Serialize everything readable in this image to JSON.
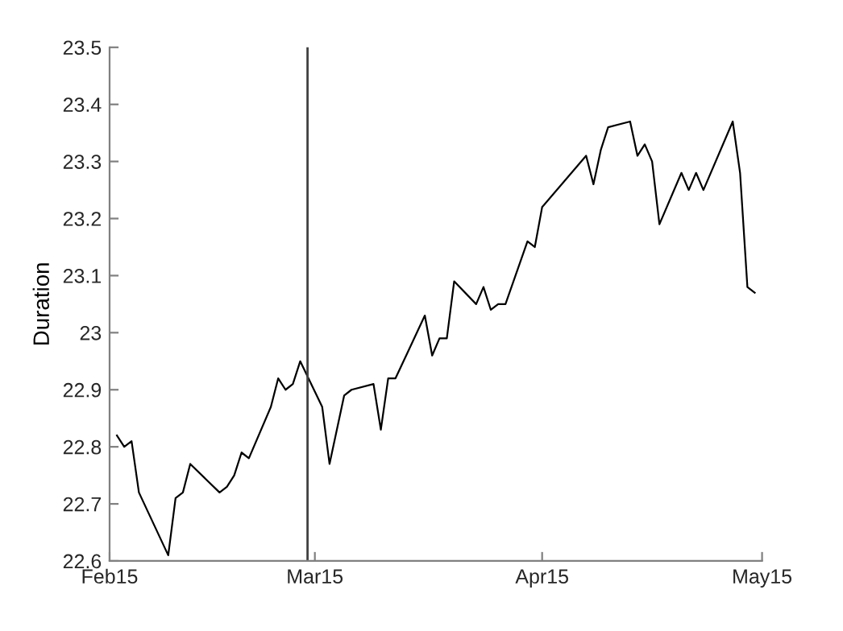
{
  "chart_data": {
    "type": "line",
    "ylabel": "Duration",
    "x": [
      "2015-02-02",
      "2015-02-03",
      "2015-02-04",
      "2015-02-05",
      "2015-02-09",
      "2015-02-10",
      "2015-02-11",
      "2015-02-12",
      "2015-02-16",
      "2015-02-17",
      "2015-02-18",
      "2015-02-19",
      "2015-02-20",
      "2015-02-23",
      "2015-02-24",
      "2015-02-25",
      "2015-02-26",
      "2015-02-27",
      "2015-03-02",
      "2015-03-03",
      "2015-03-05",
      "2015-03-06",
      "2015-03-09",
      "2015-03-10",
      "2015-03-11",
      "2015-03-12",
      "2015-03-16",
      "2015-03-17",
      "2015-03-18",
      "2015-03-19",
      "2015-03-20",
      "2015-03-23",
      "2015-03-24",
      "2015-03-25",
      "2015-03-26",
      "2015-03-27",
      "2015-03-30",
      "2015-03-31",
      "2015-04-01",
      "2015-04-07",
      "2015-04-08",
      "2015-04-09",
      "2015-04-10",
      "2015-04-13",
      "2015-04-14",
      "2015-04-15",
      "2015-04-16",
      "2015-04-17",
      "2015-04-20",
      "2015-04-21",
      "2015-04-22",
      "2015-04-23",
      "2015-04-27",
      "2015-04-28",
      "2015-04-29",
      "2015-04-30"
    ],
    "series": [
      {
        "color": "#000000",
        "values": [
          22.82,
          22.8,
          22.81,
          22.72,
          22.61,
          22.71,
          22.72,
          22.77,
          22.72,
          22.73,
          22.75,
          22.79,
          22.78,
          22.87,
          22.92,
          22.9,
          22.91,
          22.95,
          22.87,
          22.77,
          22.89,
          22.9,
          22.91,
          22.83,
          22.92,
          22.92,
          23.03,
          22.96,
          22.99,
          22.99,
          23.09,
          23.05,
          23.08,
          23.04,
          23.05,
          23.05,
          23.16,
          23.15,
          23.22,
          23.31,
          23.26,
          23.32,
          23.36,
          23.37,
          23.31,
          23.33,
          23.3,
          23.19,
          23.28,
          23.25,
          23.28,
          23.25,
          23.37,
          23.28,
          23.08,
          23.07
        ]
      }
    ],
    "xlim": [
      "2015-02-01",
      "2015-05-01"
    ],
    "xticks": [
      {
        "value": "2015-02-01",
        "label": "Feb15"
      },
      {
        "value": "2015-03-01",
        "label": "Mar15"
      },
      {
        "value": "2015-04-01",
        "label": "Apr15"
      },
      {
        "value": "2015-05-01",
        "label": "May15"
      }
    ],
    "ylim": [
      22.6,
      23.5
    ],
    "yticks": [
      22.6,
      22.7,
      22.8,
      22.9,
      23,
      23.1,
      23.2,
      23.3,
      23.4,
      23.5
    ],
    "ref_lines": [
      {
        "axis": "x",
        "value": "2015-02-28",
        "color": "#404040"
      }
    ],
    "grid": false,
    "marker": "none",
    "line_style": "solid"
  }
}
